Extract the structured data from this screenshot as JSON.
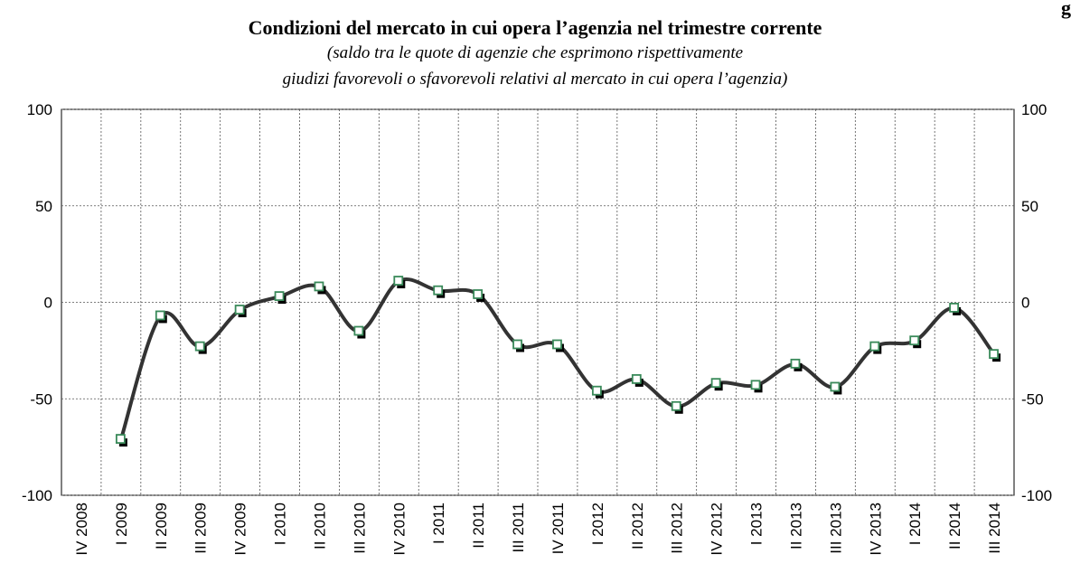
{
  "chart_data": {
    "type": "line",
    "title": "Condizioni del mercato in cui opera l’agenzia nel trimestre corrente",
    "subtitle": [
      "(saldo tra le quote di agenzie che esprimono rispettivamente",
      "giudizi favorevoli o sfavorevoli relativi al mercato in cui opera l’agenzia)"
    ],
    "corner_label": "g",
    "categories": [
      "IV 2008",
      "I 2009",
      "II 2009",
      "III 2009",
      "IV 2009",
      "I 2010",
      "II 2010",
      "III 2010",
      "IV 2010",
      "I 2011",
      "II 2011",
      "III 2011",
      "IV 2011",
      "I 2012",
      "II 2012",
      "III 2012",
      "IV 2012",
      "I 2013",
      "II 2013",
      "III 2013",
      "IV 2013",
      "I 2014",
      "II 2014",
      "III 2014"
    ],
    "series": [
      {
        "color": "#333333",
        "marker_color": "#3a8a5a",
        "values": [
          null,
          -71,
          -7,
          -23,
          -4,
          3,
          8,
          -15,
          11,
          6,
          4,
          -22,
          -22,
          -46,
          -40,
          -54,
          -42,
          -43,
          -32,
          -44,
          -23,
          -20,
          -3,
          -27
        ]
      }
    ],
    "ylim": [
      -100,
      100
    ],
    "yticks": [
      -100,
      -50,
      0,
      50,
      100
    ],
    "grid": true
  }
}
